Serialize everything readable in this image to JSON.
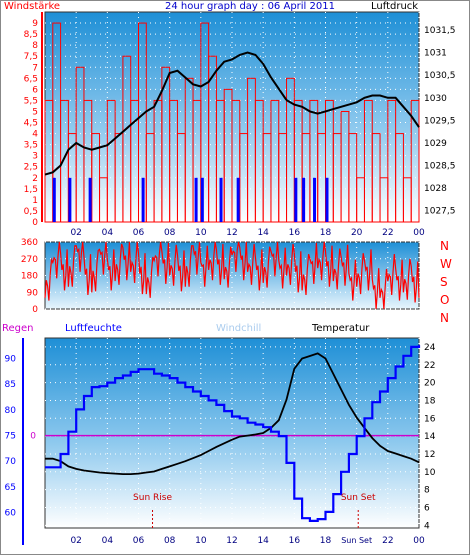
{
  "header": {
    "title": "24 hour graph day : 06 April 2011",
    "left_label": "Windstärke",
    "right_label": "Luftdruck"
  },
  "colors": {
    "wind": "#ff0000",
    "gust": "#0000ff",
    "pressure": "#000000",
    "direction": "#ff0000",
    "humidity": "#000000",
    "temperature": "#0000ff",
    "regen_label": "#cc00cc",
    "luftfeuchte_label": "#0000ff",
    "windchill_label": "#aaccee",
    "rain_line": "#cc00cc",
    "sun_text": "#cc0000"
  },
  "chart_data": [
    {
      "type": "bar",
      "name": "wind-pressure",
      "x_ticks": [
        "02",
        "04",
        "06",
        "08",
        "10",
        "12",
        "14",
        "16",
        "18",
        "20",
        "22",
        "00"
      ],
      "wind_ticks": [
        "0",
        "0,5",
        "1",
        "1,5",
        "2",
        "2,5",
        "3",
        "3,5",
        "4",
        "4,5",
        "5",
        "5,5",
        "6",
        "6,5",
        "7",
        "7,5",
        "8",
        "8,5",
        "9"
      ],
      "pressure_ticks": [
        "1027,5",
        "1028",
        "1028,5",
        "1029",
        "1029,5",
        "1030",
        "1030,5",
        "1031",
        "1031,5"
      ],
      "wind_ylim": [
        0,
        9.5
      ],
      "pressure_ylim": [
        1027.25,
        1031.9
      ],
      "pressure_series": {
        "x": [
          0,
          0.5,
          1,
          1.5,
          2,
          2.5,
          3,
          3.5,
          4,
          4.5,
          5,
          5.5,
          6,
          6.5,
          7,
          7.5,
          8,
          8.5,
          9,
          9.5,
          10,
          10.5,
          11,
          11.5,
          12,
          12.5,
          13,
          13.5,
          14,
          14.5,
          15,
          15.5,
          16,
          16.5,
          17,
          17.5,
          18,
          18.5,
          19,
          19.5,
          20,
          20.5,
          21,
          21.5,
          22,
          22.5,
          23,
          23.5,
          24
        ],
        "values": [
          1028.3,
          1028.35,
          1028.5,
          1028.85,
          1029.0,
          1028.9,
          1028.85,
          1028.9,
          1028.95,
          1029.1,
          1029.25,
          1029.4,
          1029.55,
          1029.7,
          1029.8,
          1030.15,
          1030.55,
          1030.6,
          1030.45,
          1030.3,
          1030.25,
          1030.35,
          1030.6,
          1030.8,
          1030.85,
          1030.95,
          1031.0,
          1030.95,
          1030.75,
          1030.45,
          1030.2,
          1029.95,
          1029.85,
          1029.8,
          1029.7,
          1029.65,
          1029.7,
          1029.75,
          1029.8,
          1029.85,
          1029.9,
          1030.0,
          1030.05,
          1030.05,
          1030.0,
          1030.0,
          1029.8,
          1029.6,
          1029.35
        ]
      },
      "wind_series": {
        "x": [
          0,
          0.5,
          1,
          1.5,
          2,
          2.5,
          3,
          3.5,
          4,
          4.5,
          5,
          5.5,
          6,
          6.5,
          7,
          7.5,
          8,
          8.5,
          9,
          9.5,
          10,
          10.5,
          11,
          11.5,
          12,
          12.5,
          13,
          13.5,
          14,
          14.5,
          15,
          15.5,
          16,
          16.5,
          17,
          17.5,
          18,
          18.5,
          19,
          19.5,
          20,
          20.5,
          21,
          21.5,
          22,
          22.5,
          23,
          23.5,
          24
        ],
        "values": [
          5.5,
          9.0,
          5.5,
          4.0,
          7.0,
          5.5,
          4.0,
          2.0,
          5.5,
          4.0,
          7.5,
          5.5,
          9.0,
          4.0,
          5.5,
          7.0,
          5.5,
          4.0,
          6.5,
          5.5,
          9.0,
          7.5,
          5.5,
          6.0,
          5.5,
          4.0,
          6.5,
          5.5,
          4.0,
          5.5,
          4.0,
          6.5,
          5.5,
          4.0,
          5.5,
          4.0,
          5.5,
          4.0,
          5.0,
          4.0,
          2.0,
          5.5,
          4.0,
          2.0,
          5.5,
          4.0,
          2.0,
          5.5,
          4.0
        ]
      },
      "gust_series": {
        "x": [
          0.5,
          1.5,
          2.8,
          6.2,
          9.6,
          10.0,
          11.2,
          12.3,
          16.0,
          16.5,
          17.2,
          18.0
        ],
        "values": [
          2.0,
          2.0,
          2.0,
          2.0,
          2.0,
          2.0,
          2.0,
          2.0,
          2.0,
          2.0,
          2.0,
          2.0
        ]
      }
    },
    {
      "type": "line",
      "name": "wind-direction",
      "y_ticks": [
        "360",
        "270",
        "180",
        "90",
        "0"
      ],
      "compass_labels": [
        "N",
        "W",
        "S",
        "O",
        "N"
      ],
      "ylim": [
        0,
        360
      ],
      "direction_series": {
        "x": [
          0,
          0.5,
          1,
          1.5,
          2,
          2.5,
          3,
          3.5,
          4,
          4.5,
          5,
          5.5,
          6,
          6.5,
          7,
          7.5,
          8,
          8.5,
          9,
          9.5,
          10,
          10.5,
          11,
          11.5,
          12,
          12.5,
          13,
          13.5,
          14,
          14.5,
          15,
          15.5,
          16,
          16.5,
          17,
          17.5,
          18,
          18.5,
          19,
          19.5,
          20,
          20.5,
          21,
          21.5,
          22,
          22.5,
          23,
          23.5,
          24
        ],
        "values": [
          60,
          250,
          300,
          120,
          340,
          280,
          90,
          320,
          270,
          150,
          330,
          200,
          300,
          80,
          260,
          310,
          180,
          290,
          120,
          340,
          250,
          210,
          320,
          160,
          290,
          330,
          200,
          280,
          140,
          310,
          260,
          180,
          300,
          100,
          270,
          220,
          310,
          150,
          280,
          190,
          120,
          260,
          160,
          60,
          150,
          220,
          90,
          230,
          60
        ]
      }
    },
    {
      "type": "line",
      "name": "temperature-humidity",
      "legend": [
        "Regen",
        "Luftfeuchte",
        "Windchill",
        "Temperatur"
      ],
      "humidity_ticks": [
        "60",
        "65",
        "70",
        "75",
        "80",
        "85",
        "90"
      ],
      "temperature_ticks": [
        "4",
        "6",
        "8",
        "10",
        "12",
        "14",
        "16",
        "18",
        "20",
        "22",
        "24"
      ],
      "rain_tick": "0",
      "humidity_ylim": [
        57,
        94
      ],
      "temperature_ylim": [
        3.7,
        25
      ],
      "humidity_series": {
        "x": [
          0,
          0.5,
          1,
          1.5,
          2,
          2.5,
          3,
          3.5,
          4,
          4.5,
          5,
          5.5,
          6,
          6.5,
          7,
          7.5,
          8,
          8.5,
          9,
          9.5,
          10,
          10.5,
          11,
          11.5,
          12,
          12.5,
          13,
          13.5,
          14,
          14.5,
          15,
          15.5,
          16,
          16.5,
          17,
          17.5,
          18,
          18.5,
          19,
          19.5,
          20,
          20.5,
          21,
          21.5,
          22,
          22.5,
          23,
          23.5,
          24
        ],
        "values": [
          70.5,
          70.5,
          70.0,
          69.0,
          68.5,
          68.2,
          68.0,
          67.8,
          67.7,
          67.6,
          67.5,
          67.5,
          67.6,
          67.8,
          68.0,
          68.5,
          69.0,
          69.5,
          70.0,
          70.6,
          71.2,
          72.0,
          72.8,
          73.5,
          74.2,
          74.8,
          75.0,
          75.2,
          75.5,
          76.5,
          78.0,
          82.0,
          88.0,
          90.0,
          90.5,
          91.0,
          90.0,
          87.0,
          84.0,
          81.0,
          78.5,
          76.5,
          74.5,
          73.0,
          72.0,
          71.5,
          71.0,
          70.5,
          69.8
        ]
      },
      "temperature_series": {
        "x": [
          0,
          0.5,
          1,
          1.5,
          2,
          2.5,
          3,
          3.5,
          4,
          4.5,
          5,
          5.5,
          6,
          6.5,
          7,
          7.5,
          8,
          8.5,
          9,
          9.5,
          10,
          10.5,
          11,
          11.5,
          12,
          12.5,
          13,
          13.5,
          14,
          14.5,
          15,
          15.5,
          16,
          16.5,
          17,
          17.5,
          18,
          18.5,
          19,
          19.5,
          20,
          20.5,
          21,
          21.5,
          22,
          22.5,
          23,
          23.5,
          24
        ],
        "values": [
          10.5,
          10.5,
          12.0,
          14.5,
          17.0,
          18.5,
          19.5,
          19.6,
          20.0,
          20.5,
          20.8,
          21.2,
          21.5,
          21.5,
          21.0,
          20.8,
          20.5,
          20.0,
          19.5,
          19.0,
          18.5,
          18.0,
          17.5,
          16.8,
          16.2,
          16.0,
          15.5,
          15.3,
          15.0,
          14.5,
          14.0,
          11.0,
          7.0,
          4.8,
          4.5,
          4.7,
          5.5,
          7.5,
          10.0,
          12.0,
          14.0,
          16.0,
          17.8,
          19.0,
          20.5,
          21.8,
          23.0,
          24.0,
          24.2
        ]
      },
      "rain_value": 0,
      "sun_rise_label": "Sun Rise",
      "sun_rise_x": 6.9,
      "sun_set_label": "Sun Set",
      "sun_set_x": 20.1,
      "x_ticks": [
        "02",
        "04",
        "06",
        "08",
        "10",
        "12",
        "14",
        "16",
        "18",
        "Sun Set",
        "22",
        "00"
      ]
    }
  ]
}
